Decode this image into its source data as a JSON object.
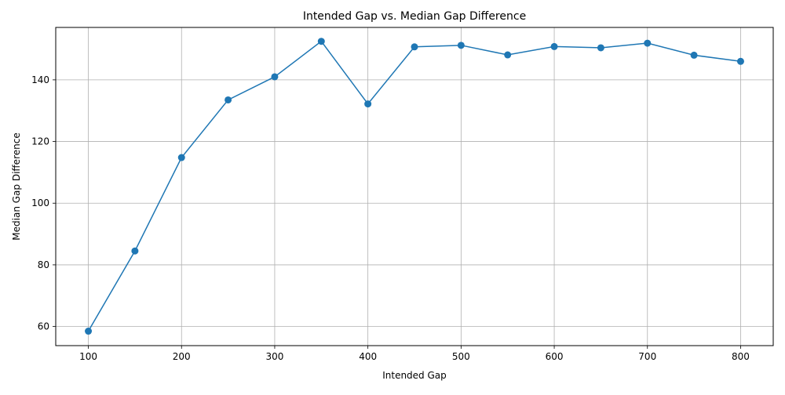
{
  "chart_data": {
    "type": "line",
    "title": "Intended Gap vs. Median Gap Difference",
    "xlabel": "Intended Gap",
    "ylabel": "Median Gap Difference",
    "x": [
      100,
      150,
      200,
      250,
      300,
      350,
      400,
      450,
      500,
      550,
      600,
      650,
      700,
      750,
      800
    ],
    "series": [
      {
        "values": [
          58.5,
          84.5,
          114.8,
          133.5,
          141.0,
          152.5,
          132.2,
          150.7,
          151.2,
          148.1,
          150.8,
          150.4,
          151.9,
          148.0,
          146.0
        ],
        "color": "#1f77b4",
        "marker": "circle"
      }
    ],
    "xlim": [
      65,
      835
    ],
    "ylim": [
      53.8,
      157.0
    ],
    "xticks": [
      100,
      200,
      300,
      400,
      500,
      600,
      700,
      800
    ],
    "yticks": [
      60,
      80,
      100,
      120,
      140
    ],
    "grid": true
  }
}
